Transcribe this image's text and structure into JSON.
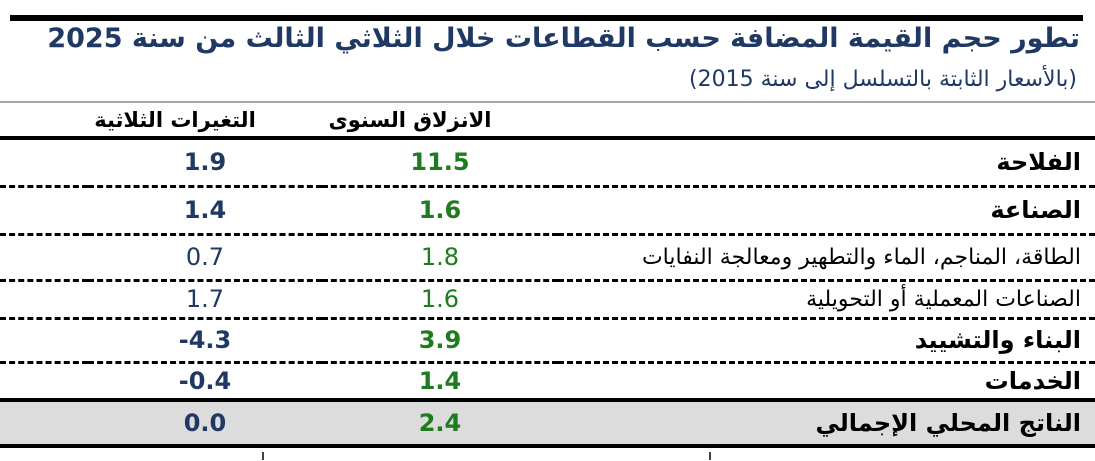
{
  "header": {
    "title": "تطور حجم القيمة المضافة حسب القطاعات خلال الثلاثي الثالث من سنة 2025",
    "subtitle": "(بالأسعار الثابتة بالتسلسل إلى سنة 2015)"
  },
  "colors": {
    "title_navy": "#1F3864",
    "annual_green": "#1E7B1E",
    "quarterly_navy": "#1F3864",
    "gray_rule": "#A6A6A6",
    "total_row_bg": "#DCDCDC"
  },
  "table": {
    "columns": {
      "annual": "الانزلاق السنوى",
      "quarterly": "التغيرات الثلاثية"
    },
    "rows": [
      {
        "sector": "الفلاحة",
        "annual": "11.5",
        "quarterly": "1.9"
      },
      {
        "sector": "الصناعة",
        "annual": "1.6",
        "quarterly": "1.4"
      },
      {
        "sector": "الطاقة، المناجم، الماء والتطهير ومعالجة النفايات",
        "annual": "1.8",
        "quarterly": "0.7"
      },
      {
        "sector": "الصناعات المعملية أو التحويلية",
        "annual": "1.6",
        "quarterly": "1.7"
      },
      {
        "sector": "البناء والتشييد",
        "annual": "3.9",
        "quarterly": "-4.3"
      },
      {
        "sector": "الخدمات",
        "annual": "1.4",
        "quarterly": "-0.4"
      },
      {
        "sector": "الناتج المحلي الإجمالي",
        "annual": "2.4",
        "quarterly": "0.0"
      }
    ]
  }
}
